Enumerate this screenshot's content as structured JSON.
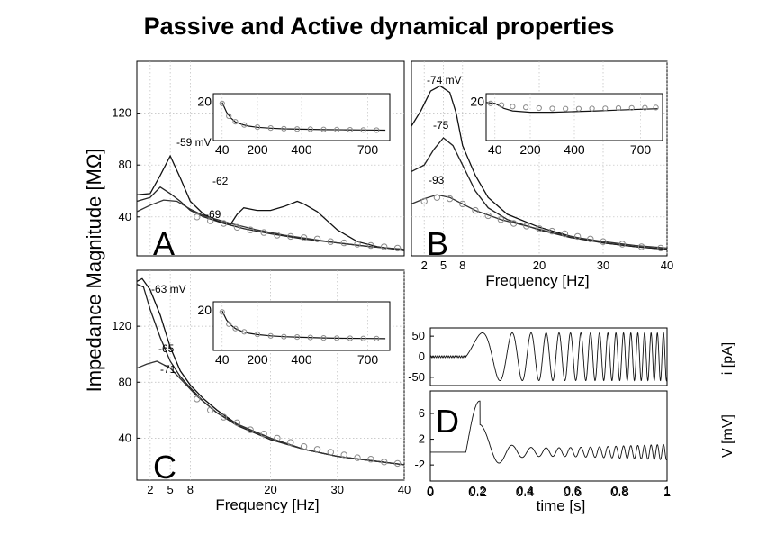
{
  "title": "Passive and Active dynamical properties",
  "y_axis_label": "Impedance Magnitude [MΩ]",
  "chart_data": [
    {
      "panel": "A",
      "type": "line",
      "xlim": [
        0,
        40
      ],
      "ylim": [
        10,
        160
      ],
      "yticks": [
        40,
        80,
        120
      ],
      "xticks_major": [],
      "xticks_minor": [
        2,
        5,
        8
      ],
      "xtick_labels": [],
      "grid": true,
      "series": [
        {
          "name": "-59 mV",
          "color": "#111111",
          "x": [
            0,
            2,
            3.5,
            5,
            6.5,
            8,
            10,
            12,
            14,
            15,
            16,
            18,
            20,
            22,
            24,
            25,
            27,
            30,
            33,
            36,
            40
          ],
          "y": [
            57,
            58,
            72,
            87,
            70,
            52,
            42,
            37,
            34,
            42,
            47,
            45,
            45,
            48,
            52,
            50,
            44,
            30,
            21,
            17,
            14
          ]
        },
        {
          "name": "-62",
          "color": "#222222",
          "x": [
            0,
            2,
            3.5,
            5,
            6.5,
            8,
            10,
            13,
            16,
            20,
            25,
            30,
            35,
            40
          ],
          "y": [
            52,
            55,
            63,
            58,
            52,
            45,
            40,
            35,
            31,
            27,
            23,
            20,
            17,
            15
          ]
        },
        {
          "name": "-69",
          "color": "#333333",
          "x": [
            0,
            2,
            4,
            6,
            8,
            10,
            14,
            18,
            22,
            26,
            30,
            35,
            40
          ],
          "y": [
            44,
            49,
            53,
            52,
            46,
            41,
            35,
            30,
            26,
            23,
            20,
            17,
            15
          ]
        },
        {
          "name": "",
          "marker": "circle",
          "color": "#888888",
          "x": [
            9,
            11,
            13,
            15,
            17,
            19,
            21,
            23,
            25,
            27,
            29,
            31,
            33,
            35,
            37,
            39
          ],
          "y": [
            40,
            37,
            35,
            32,
            30,
            28,
            26,
            25,
            24,
            23,
            21,
            20,
            19,
            18,
            17,
            16
          ]
        }
      ],
      "annotations": [
        "-59 mV",
        "-62",
        "-69"
      ],
      "inset": {
        "xlim": [
          0,
          800
        ],
        "ylim": [
          0,
          24
        ],
        "xticks": [
          40,
          200,
          400,
          700
        ],
        "yticks": [
          20
        ],
        "series": [
          {
            "name": "",
            "color": "#111111",
            "x": [
              40,
              60,
              80,
              100,
              130,
              160,
              200,
              260,
              320,
              400,
              500,
              600,
              700,
              780
            ],
            "y": [
              19.5,
              14.5,
              11.5,
              9.5,
              8.2,
              7.4,
              6.8,
              6.3,
              6.0,
              5.8,
              5.6,
              5.5,
              5.4,
              5.3
            ]
          },
          {
            "name": "",
            "marker": "circle",
            "color": "#888888",
            "x": [
              40,
              70,
              100,
              140,
              200,
              260,
              320,
              380,
              440,
              500,
              560,
              620,
              680,
              740
            ],
            "y": [
              19,
              12.5,
              9.6,
              8.0,
              6.9,
              6.4,
              6.1,
              5.9,
              5.8,
              5.7,
              5.6,
              5.5,
              5.4,
              5.3
            ]
          }
        ]
      }
    },
    {
      "panel": "B",
      "type": "line",
      "xlim": [
        0,
        40
      ],
      "ylim": [
        10,
        160
      ],
      "yticks": [],
      "xticks_major": [
        20,
        30,
        40
      ],
      "xticks_minor": [
        2,
        5,
        8
      ],
      "xtick_labels": [
        "2",
        "5",
        "8",
        "20",
        "30",
        "40"
      ],
      "xlabel": "Frequency   [Hz]",
      "grid": true,
      "series": [
        {
          "name": "-74 mV",
          "color": "#111111",
          "x": [
            0,
            1.5,
            3,
            4.5,
            6,
            7,
            8,
            10,
            12,
            15,
            20,
            25,
            30,
            35,
            40
          ],
          "y": [
            110,
            122,
            137,
            141,
            136,
            120,
            95,
            72,
            55,
            42,
            32,
            25,
            20,
            17,
            15
          ]
        },
        {
          "name": "-75",
          "color": "#222222",
          "x": [
            0,
            2,
            3.5,
            5,
            6.5,
            8,
            10,
            12,
            15,
            20,
            25,
            30,
            35,
            40
          ],
          "y": [
            75,
            80,
            92,
            101,
            95,
            80,
            60,
            47,
            38,
            30,
            24,
            20,
            17,
            15
          ]
        },
        {
          "name": "-93",
          "color": "#333333",
          "x": [
            0,
            2,
            4,
            6,
            8,
            10,
            14,
            18,
            22,
            26,
            30,
            35,
            40
          ],
          "y": [
            50,
            54,
            57,
            55,
            50,
            45,
            38,
            33,
            28,
            24,
            21,
            18,
            16
          ]
        },
        {
          "name": "",
          "marker": "circle",
          "color": "#888888",
          "x": [
            2,
            4,
            6,
            8,
            10,
            12,
            14,
            16,
            18,
            20,
            22,
            24,
            26,
            28,
            30,
            33,
            36,
            39
          ],
          "y": [
            52,
            55,
            54,
            50,
            45,
            41,
            38,
            35,
            33,
            31,
            29,
            27,
            25,
            23,
            21,
            19,
            17,
            16
          ]
        }
      ],
      "annotations": [
        "-74 mV",
        "-75",
        "-93"
      ],
      "inset": {
        "xlim": [
          0,
          800
        ],
        "ylim": [
          0,
          24
        ],
        "xticks": [
          40,
          200,
          400,
          700
        ],
        "yticks": [
          20
        ],
        "series": [
          {
            "name": "",
            "color": "#111111",
            "x": [
              0,
              40,
              80,
              120,
              200,
              300,
              400,
              500,
              600,
              700,
              780
            ],
            "y": [
              19.5,
              19,
              16.5,
              15.2,
              14.5,
              14.5,
              14.8,
              15.2,
              15.6,
              16.0,
              16.3
            ]
          },
          {
            "name": "",
            "marker": "circle",
            "color": "#888888",
            "x": [
              20,
              70,
              120,
              180,
              240,
              300,
              360,
              420,
              480,
              540,
              600,
              660,
              720,
              770
            ],
            "y": [
              19,
              18.2,
              17.4,
              17.0,
              16.6,
              16.4,
              16.3,
              16.3,
              16.4,
              16.5,
              16.6,
              16.7,
              16.8,
              16.9
            ]
          }
        ]
      }
    },
    {
      "panel": "C",
      "type": "line",
      "xlim": [
        0,
        40
      ],
      "ylim": [
        10,
        160
      ],
      "yticks": [
        40,
        80,
        120
      ],
      "xticks_major": [
        20,
        30,
        40
      ],
      "xticks_minor": [
        2,
        5,
        8
      ],
      "xtick_labels": [
        "2",
        "5",
        "8",
        "20",
        "30",
        "40"
      ],
      "xlabel": "Frequency   [Hz]",
      "grid": true,
      "series": [
        {
          "name": "-63 mV",
          "color": "#111111",
          "x": [
            0,
            0.8,
            2,
            3.5,
            5,
            6.5,
            8,
            10,
            12,
            15,
            20,
            25,
            30,
            35,
            40
          ],
          "y": [
            152,
            154,
            146,
            128,
            105,
            88,
            78,
            68,
            60,
            50,
            40,
            32,
            27,
            24,
            21
          ]
        },
        {
          "name": "-65",
          "color": "#222222",
          "x": [
            0,
            1,
            2,
            3.5,
            5,
            6.5,
            8,
            10,
            12,
            15,
            20,
            25,
            30,
            35,
            40
          ],
          "y": [
            150,
            148,
            132,
            112,
            95,
            84,
            76,
            66,
            58,
            49,
            39,
            32,
            27,
            24,
            21
          ]
        },
        {
          "name": "-71",
          "color": "#333333",
          "x": [
            0,
            1.5,
            3,
            5,
            7,
            9,
            12,
            15,
            20,
            25,
            30,
            35,
            40
          ],
          "y": [
            90,
            93,
            95,
            90,
            80,
            70,
            58,
            50,
            40,
            32,
            27,
            24,
            21
          ]
        },
        {
          "name": "",
          "marker": "circle",
          "color": "#888888",
          "x": [
            9,
            11,
            13,
            15,
            17,
            19,
            21,
            23,
            25,
            27,
            29,
            31,
            33,
            35,
            37,
            39
          ],
          "y": [
            68,
            60,
            55,
            51,
            46,
            43,
            40,
            37,
            34,
            32,
            30,
            28,
            26,
            25,
            23,
            22
          ]
        }
      ],
      "annotations": [
        "-63 mV",
        "-65",
        "-71"
      ],
      "inset": {
        "xlim": [
          0,
          800
        ],
        "ylim": [
          0,
          24
        ],
        "xticks": [
          40,
          200,
          400,
          700
        ],
        "yticks": [
          20
        ],
        "series": [
          {
            "name": "",
            "color": "#111111",
            "x": [
              40,
              60,
              80,
              100,
              130,
              160,
              200,
              260,
              320,
              400,
              500,
              600,
              700,
              780
            ],
            "y": [
              19.5,
              15,
              12.5,
              10.8,
              9.4,
              8.5,
              7.8,
              7.2,
              6.8,
              6.5,
              6.2,
              6.0,
              5.9,
              5.8
            ]
          },
          {
            "name": "",
            "marker": "circle",
            "color": "#888888",
            "x": [
              40,
              70,
              100,
              140,
              200,
              260,
              320,
              380,
              440,
              500,
              560,
              620,
              680,
              740
            ],
            "y": [
              19,
              13,
              10.8,
              9.2,
              7.9,
              7.2,
              6.8,
              6.6,
              6.4,
              6.2,
              6.1,
              6.0,
              5.9,
              5.8
            ]
          }
        ]
      }
    },
    {
      "panel": "D-top",
      "type": "line",
      "xlim": [
        0,
        1
      ],
      "ylim": [
        -70,
        70
      ],
      "yticks": [
        50,
        0,
        -50
      ],
      "xticks_major": [],
      "xtick_labels": [],
      "ylabel": "i [pA]",
      "signal": {
        "kind": "chirp_current",
        "onset_s": 0.15,
        "amplitude": 58,
        "f0_hz": 2,
        "f1_hz": 40
      }
    },
    {
      "panel": "D",
      "type": "line",
      "xlim": [
        0,
        1
      ],
      "ylim": [
        -4.5,
        9.5
      ],
      "yticks": [
        6,
        2,
        -2
      ],
      "xticks_major": [
        0,
        0.2,
        0.4,
        0.6,
        0.8,
        1
      ],
      "xtick_labels": [
        "0",
        "0.2",
        "0.4",
        "0.6",
        "0.8",
        "1"
      ],
      "xlabel": "time [s]",
      "ylabel": "V [mV]",
      "signal": {
        "kind": "chirp_voltage",
        "onset_s": 0.15,
        "baseline_mv": 0,
        "peak_mv": 7.3,
        "f0_hz": 2,
        "f1_hz": 40
      }
    }
  ]
}
